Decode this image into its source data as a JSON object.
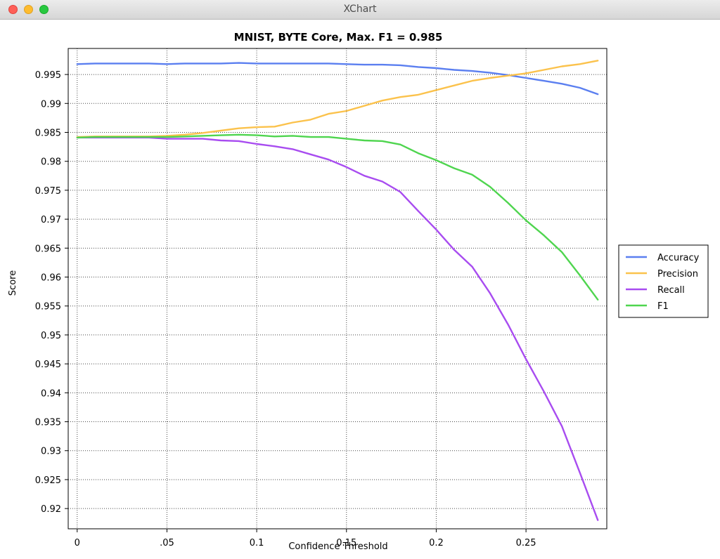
{
  "window": {
    "title": "XChart"
  },
  "colors": {
    "accuracy": "#5b7ff0",
    "precision": "#fbc24c",
    "recall": "#a84cf0",
    "f1": "#4fd54f",
    "titlebar": "#e3e3e3"
  },
  "chart_data": {
    "type": "line",
    "title": "MNIST, BYTE Core, Max. F1 = 0.985",
    "xlabel": "Confidence Threshold",
    "ylabel": "Score",
    "xlim": [
      -0.005,
      0.295
    ],
    "ylim": [
      0.9165,
      0.9995
    ],
    "x_ticks": [
      0,
      0.05,
      0.1,
      0.15,
      0.2,
      0.25
    ],
    "x_tick_labels": [
      "0",
      ".05",
      "0.1",
      "0.15",
      "0.2",
      "0.25"
    ],
    "y_ticks": [
      0.92,
      0.925,
      0.93,
      0.935,
      0.94,
      0.945,
      0.95,
      0.955,
      0.96,
      0.965,
      0.97,
      0.975,
      0.98,
      0.985,
      0.99,
      0.995
    ],
    "y_tick_labels": [
      "0.92",
      "0.925",
      "0.93",
      "0.935",
      "0.94",
      "0.945",
      "0.95",
      "0.955",
      "0.96",
      "0.965",
      "0.97",
      "0.975",
      "0.98",
      "0.985",
      "0.99",
      "0.995"
    ],
    "grid": true,
    "legend_position": "right",
    "x": [
      0,
      0.01,
      0.02,
      0.03,
      0.04,
      0.05,
      0.06,
      0.07,
      0.08,
      0.09,
      0.1,
      0.11,
      0.12,
      0.13,
      0.14,
      0.15,
      0.16,
      0.17,
      0.18,
      0.19,
      0.2,
      0.21,
      0.22,
      0.23,
      0.24,
      0.25,
      0.26,
      0.27,
      0.28,
      0.29
    ],
    "series": [
      {
        "name": "Accuracy",
        "color": "#5b7ff0",
        "values": [
          0.9968,
          0.9969,
          0.9969,
          0.9969,
          0.9969,
          0.9968,
          0.9969,
          0.9969,
          0.9969,
          0.997,
          0.9969,
          0.9969,
          0.9969,
          0.9969,
          0.9969,
          0.9968,
          0.9967,
          0.9967,
          0.9966,
          0.9963,
          0.9961,
          0.9958,
          0.9956,
          0.9953,
          0.9949,
          0.9944,
          0.9939,
          0.9934,
          0.9927,
          0.9916
        ]
      },
      {
        "name": "Precision",
        "color": "#fbc24c",
        "values": [
          0.9842,
          0.9843,
          0.9843,
          0.9843,
          0.9843,
          0.9844,
          0.9846,
          0.9849,
          0.9853,
          0.9857,
          0.9859,
          0.986,
          0.9867,
          0.9872,
          0.9882,
          0.9887,
          0.9896,
          0.9905,
          0.9911,
          0.9915,
          0.9923,
          0.9931,
          0.9939,
          0.9944,
          0.9948,
          0.9952,
          0.9958,
          0.9964,
          0.9968,
          0.9974
        ]
      },
      {
        "name": "Recall",
        "color": "#a84cf0",
        "values": [
          0.9841,
          0.9841,
          0.9841,
          0.9841,
          0.9841,
          0.9839,
          0.9839,
          0.9839,
          0.9836,
          0.9835,
          0.983,
          0.9826,
          0.9821,
          0.9812,
          0.9803,
          0.979,
          0.9775,
          0.9765,
          0.9747,
          0.9714,
          0.9682,
          0.9647,
          0.9618,
          0.9572,
          0.9518,
          0.9458,
          0.9402,
          0.9342,
          0.9262,
          0.918
        ]
      },
      {
        "name": "F1",
        "color": "#4fd54f",
        "values": [
          0.9841,
          0.9842,
          0.9842,
          0.9842,
          0.9842,
          0.9842,
          0.9843,
          0.9844,
          0.9845,
          0.9846,
          0.9845,
          0.9843,
          0.9844,
          0.9842,
          0.9842,
          0.9839,
          0.9836,
          0.9835,
          0.9829,
          0.9814,
          0.9802,
          0.9788,
          0.9777,
          0.9756,
          0.9728,
          0.9698,
          0.9672,
          0.9643,
          0.9603,
          0.9561
        ]
      }
    ]
  }
}
